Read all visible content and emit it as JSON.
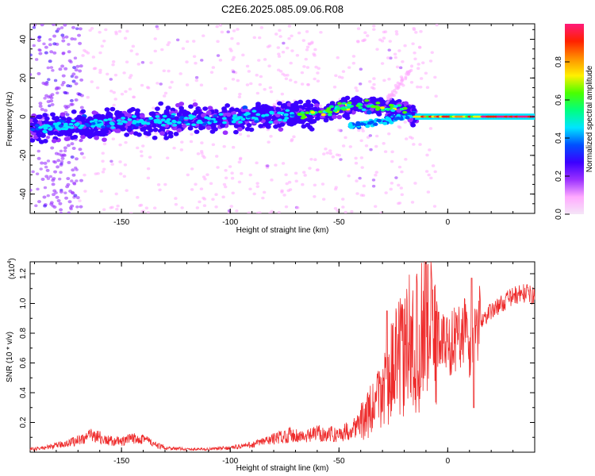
{
  "title": "C2E6.2025.085.09.06.R08",
  "chart_data": [
    {
      "type": "heatmap",
      "xlabel": "Height of straight line (km)",
      "ylabel": "Frequency (Hz)",
      "xlim": [
        -192,
        40
      ],
      "ylim": [
        -50,
        48
      ],
      "xticks": [
        -150,
        -100,
        -50,
        0
      ],
      "yticks": [
        -40,
        -20,
        0,
        20,
        40
      ],
      "colorbar": {
        "label": "Normalized spectral amplitude",
        "range": [
          0,
          1
        ],
        "ticks": [
          0.0,
          0.2,
          0.4,
          0.6,
          0.8
        ],
        "colormap": [
          "#f5e6f7",
          "#ffaaff",
          "#9a30ff",
          "#3b00ff",
          "#0050ff",
          "#00e5ff",
          "#00ff80",
          "#4aff00",
          "#fff000",
          "#ff9000",
          "#ff2000",
          "#ff1a7a"
        ]
      },
      "ridge": [
        {
          "x": -192,
          "y": -6
        },
        {
          "x": -150,
          "y": -3
        },
        {
          "x": -100,
          "y": -1
        },
        {
          "x": -60,
          "y": 2
        },
        {
          "x": -40,
          "y": 6
        },
        {
          "x": -20,
          "y": 4
        },
        {
          "x": -15,
          "y": 0
        },
        {
          "x": 0,
          "y": -1
        },
        {
          "x": 20,
          "y": 0
        },
        {
          "x": 40,
          "y": 0
        }
      ]
    },
    {
      "type": "line",
      "xlabel": "Height of straight line (km)",
      "ylabel": "SNR (10 * v/v)",
      "yscale_note": "(x10",
      "yscale_exp": "4",
      "xlim": [
        -192,
        40
      ],
      "ylim": [
        0.0,
        1.28
      ],
      "xticks": [
        -150,
        -100,
        -50,
        0
      ],
      "yticks": [
        0.2,
        0.4,
        0.6,
        0.8,
        1.0,
        1.2
      ],
      "color": "#ee2b2b",
      "series": [
        {
          "x": [
            -192,
            -185,
            -175,
            -168,
            -162,
            -158,
            -150,
            -145,
            -140,
            -135,
            -130,
            -120,
            -110,
            -100,
            -90,
            -80,
            -72,
            -65,
            -60,
            -55,
            -50,
            -45,
            -40,
            -35,
            -30,
            -28,
            -25,
            -22,
            -20,
            -18,
            -15,
            -12,
            -10,
            -8,
            -5,
            0,
            5,
            8,
            10,
            12,
            15,
            20,
            25,
            30,
            35,
            40
          ],
          "y": [
            0.02,
            0.03,
            0.06,
            0.09,
            0.12,
            0.08,
            0.07,
            0.09,
            0.1,
            0.05,
            0.03,
            0.02,
            0.02,
            0.03,
            0.05,
            0.09,
            0.12,
            0.1,
            0.13,
            0.12,
            0.12,
            0.15,
            0.2,
            0.28,
            0.4,
            0.5,
            0.55,
            0.65,
            0.62,
            0.75,
            0.7,
            0.8,
            0.9,
            0.82,
            0.78,
            0.72,
            0.78,
            0.85,
            0.65,
            0.8,
            0.88,
            0.95,
            1.0,
            1.05,
            1.07,
            1.05
          ]
        }
      ],
      "spikes": [
        {
          "x": -10,
          "y": 1.28
        },
        {
          "x": 11,
          "y": 1.17
        },
        {
          "x": -28,
          "y": 0.95
        },
        {
          "x": 12,
          "y": 0.3
        }
      ]
    }
  ]
}
